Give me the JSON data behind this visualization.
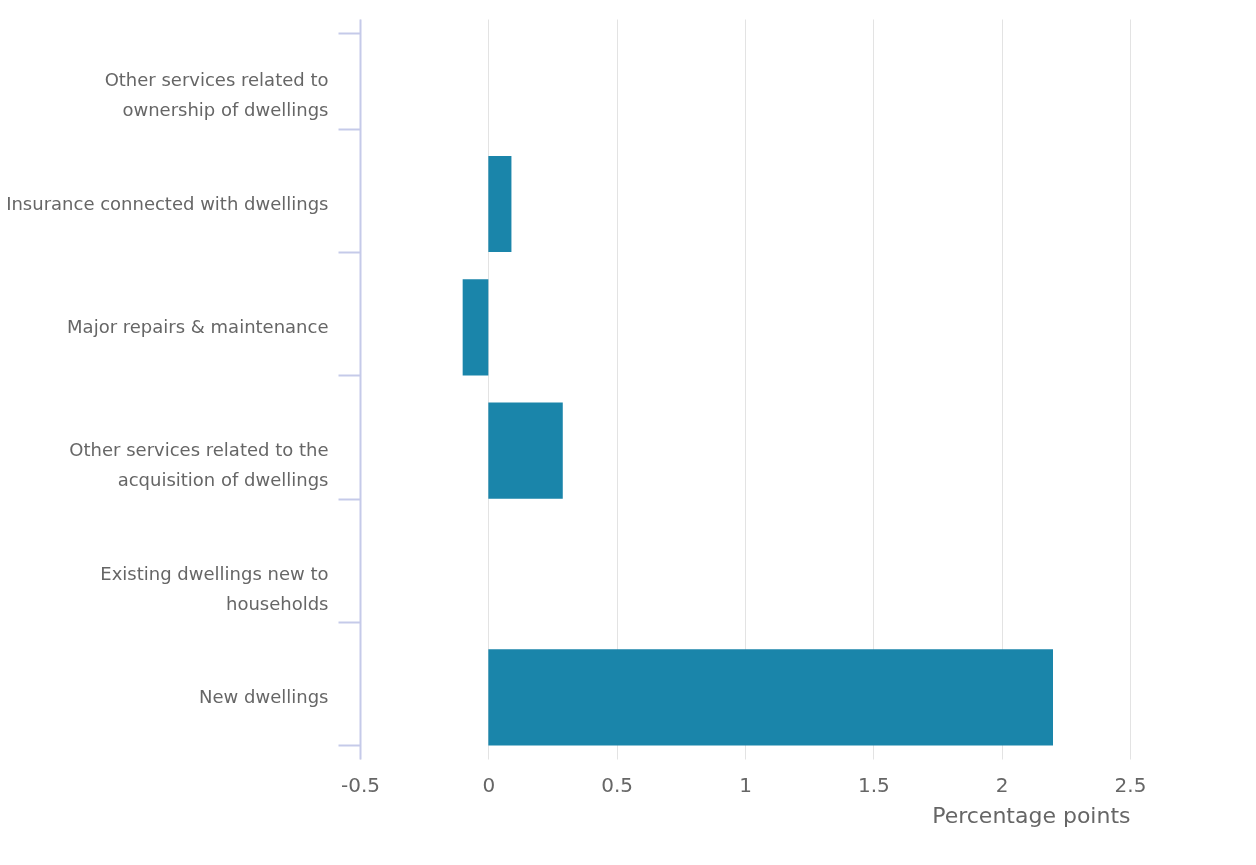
{
  "chart_data": {
    "type": "bar",
    "orientation": "horizontal",
    "xlabel": "Percentage points",
    "categories": [
      "Other services related to ownership of dwellings",
      "Insurance connected with dwellings",
      "Major repairs & maintenance",
      "Other services related to the acquisition of dwellings",
      "Existing dwellings new to households",
      "New dwellings"
    ],
    "values": [
      0,
      0.09,
      -0.1,
      0.29,
      0,
      2.2
    ],
    "color": "#1a85aa",
    "xlim": [
      -0.5,
      2.5
    ],
    "xticks": [
      -0.5,
      0,
      0.5,
      1,
      1.5,
      2,
      2.5
    ],
    "grid": "x"
  }
}
